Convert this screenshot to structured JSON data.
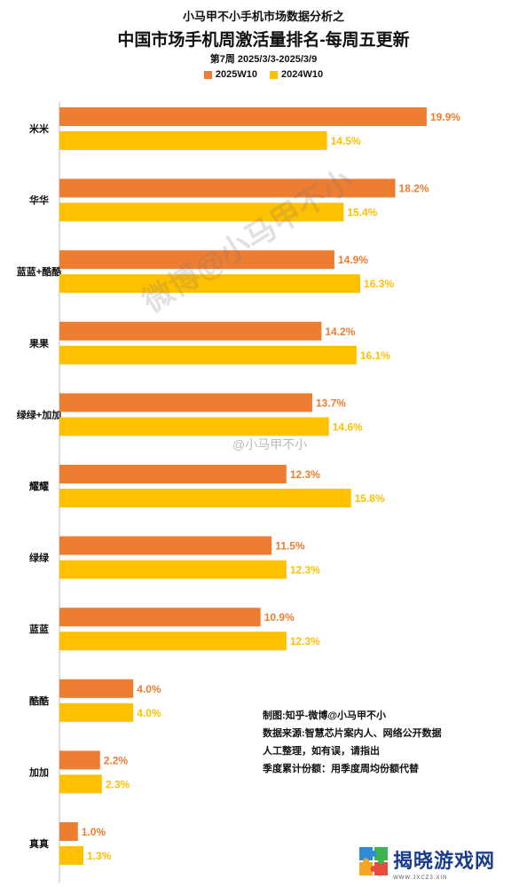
{
  "header": {
    "super_title": "小马甲不小手机市场数据分析之",
    "title": "中国市场手机周激活量排名-每周五更新",
    "subtitle": "第7周 2025/3/3-2025/3/9"
  },
  "chart_data": {
    "type": "bar",
    "orientation": "horizontal",
    "unit": "%",
    "categories": [
      "米米",
      "华华",
      "蓝蓝+酷酷",
      "果果",
      "绿绿+加加",
      "耀耀",
      "绿绿",
      "蓝蓝",
      "酷酷",
      "加加",
      "真真"
    ],
    "series": [
      {
        "name": "2025W10",
        "color": "#ED7D31",
        "values": [
          19.9,
          18.2,
          14.9,
          14.2,
          13.7,
          12.3,
          11.5,
          10.9,
          4.0,
          2.2,
          1.0
        ],
        "labels": [
          "19.9%",
          "18.2%",
          "14.9%",
          "14.2%",
          "13.7%",
          "12.3%",
          "11.5%",
          "10.9%",
          "4.0%",
          "2.2%",
          "1.0%"
        ]
      },
      {
        "name": "2024W10",
        "color": "#FFC000",
        "values": [
          14.5,
          15.4,
          16.3,
          16.1,
          14.6,
          15.8,
          12.3,
          12.3,
          4.0,
          2.3,
          1.3
        ],
        "labels": [
          "14.5%",
          "15.4%",
          "16.3%",
          "16.1%",
          "14.6%",
          "15.8%",
          "12.3%",
          "12.3%",
          "4.0%",
          "2.3%",
          "1.3%"
        ]
      }
    ],
    "legend_position": "top-center",
    "grid": false
  },
  "watermarks": {
    "diagonal": "微博@小马甲不小",
    "small": "@小马甲不小"
  },
  "notes": [
    "制图:知乎-微博@小马甲不小",
    "数据来源:智慧芯片案内人、网络公开数据",
    "人工整理，如有误，请指出",
    "季度累计份额：用季度周均份额代替"
  ],
  "logo": {
    "name": "揭晓游戏网",
    "url": "WWW.JXCZ3.XIN"
  }
}
